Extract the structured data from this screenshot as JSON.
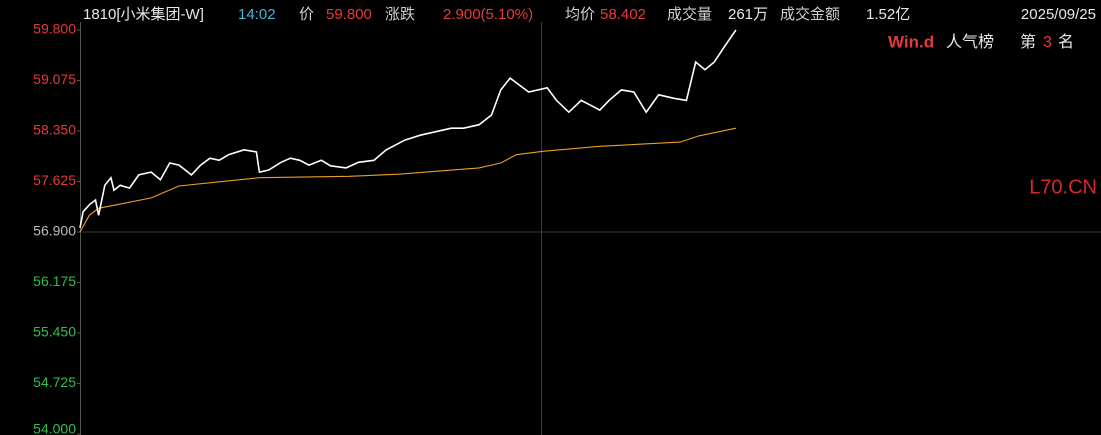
{
  "header": {
    "code": "1810[小米集团-W]",
    "time": "14:02",
    "price_label": "价",
    "price": "59.800",
    "change_label": "涨跌",
    "change": "2.900(5.10%)",
    "avg_label": "均价",
    "avg": "58.402",
    "volume_label": "成交量",
    "volume": "261万",
    "turnover_label": "成交金额",
    "turnover": "1.52亿",
    "date": "2025/09/25"
  },
  "badge": {
    "brand": "Win.d",
    "list": "人气榜",
    "rank_prefix": "第",
    "rank": "3",
    "rank_suffix": "名"
  },
  "watermark": "L70.CN",
  "chart_data": {
    "type": "line",
    "xlim": [
      0,
      330
    ],
    "ylim": [
      54.0,
      59.8
    ],
    "yticks": [
      {
        "value": 59.8,
        "label": "59.800",
        "color": "#e5393b"
      },
      {
        "value": 59.075,
        "label": "59.075",
        "color": "#e5393b"
      },
      {
        "value": 58.35,
        "label": "58.350",
        "color": "#e5393b"
      },
      {
        "value": 57.625,
        "label": "57.625",
        "color": "#e5393b"
      },
      {
        "value": 56.9,
        "label": "56.900",
        "color": "#bbbbbb"
      },
      {
        "value": 56.175,
        "label": "56.175",
        "color": "#2fbf4f"
      },
      {
        "value": 55.45,
        "label": "55.450",
        "color": "#2fbf4f"
      },
      {
        "value": 54.725,
        "label": "54.725",
        "color": "#2fbf4f"
      },
      {
        "value": 54.0,
        "label": "54.000",
        "color": "#2fbf4f"
      }
    ],
    "series": [
      {
        "color": "#ffffff",
        "x": [
          0,
          1,
          3,
          5,
          6,
          8,
          10,
          11,
          13,
          16,
          19,
          23,
          26,
          29,
          32,
          36,
          39,
          42,
          45,
          48,
          53,
          57,
          58,
          61,
          65,
          68,
          71,
          74,
          78,
          81,
          86,
          90,
          95,
          99,
          102,
          105,
          110,
          115,
          120,
          124,
          129,
          133,
          136,
          139,
          142,
          145,
          151,
          154,
          158,
          162,
          165,
          168,
          171,
          175,
          179,
          183,
          187,
          192,
          196,
          199,
          202,
          205,
          208,
          212
        ],
        "values": [
          56.96,
          57.19,
          57.29,
          57.36,
          57.14,
          57.57,
          57.68,
          57.5,
          57.57,
          57.53,
          57.72,
          57.76,
          57.65,
          57.89,
          57.86,
          57.72,
          57.86,
          57.96,
          57.93,
          58.01,
          58.08,
          58.05,
          57.76,
          57.79,
          57.9,
          57.96,
          57.93,
          57.86,
          57.93,
          57.85,
          57.82,
          57.9,
          57.93,
          58.08,
          58.15,
          58.22,
          58.29,
          58.34,
          58.39,
          58.39,
          58.44,
          58.58,
          58.94,
          59.11,
          59.01,
          58.91,
          58.97,
          58.79,
          58.62,
          58.79,
          58.72,
          58.65,
          58.79,
          58.94,
          58.91,
          58.62,
          58.87,
          58.82,
          58.79,
          59.34,
          59.23,
          59.34,
          59.54,
          59.8
        ]
      },
      {
        "color": "#e8a020",
        "x": [
          0,
          3,
          6,
          13,
          23,
          32,
          45,
          58,
          87,
          103,
          129,
          136,
          141,
          150,
          168,
          194,
          200,
          212
        ],
        "values": [
          56.9,
          57.14,
          57.24,
          57.3,
          57.39,
          57.56,
          57.62,
          57.68,
          57.7,
          57.73,
          57.82,
          57.89,
          58.01,
          58.06,
          58.13,
          58.19,
          58.28,
          58.39
        ]
      }
    ]
  }
}
